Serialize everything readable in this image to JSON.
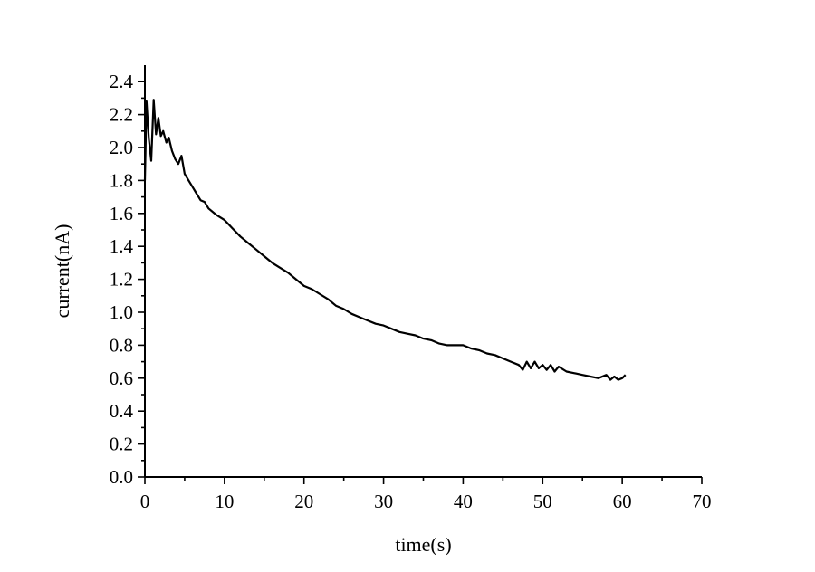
{
  "chart_data": {
    "type": "line",
    "title": "",
    "xlabel": "time(s)",
    "ylabel": "current(nA)",
    "xlim": [
      0,
      70
    ],
    "ylim": [
      0,
      2.5
    ],
    "x_ticks": [
      0,
      10,
      20,
      30,
      40,
      50,
      60,
      70
    ],
    "x_tick_labels": [
      "0",
      "10",
      "20",
      "30",
      "40",
      "50",
      "60",
      "70"
    ],
    "y_ticks": [
      0.0,
      0.2,
      0.4,
      0.6,
      0.8,
      1.0,
      1.2,
      1.4,
      1.6,
      1.8,
      2.0,
      2.2,
      2.4
    ],
    "y_tick_labels": [
      "0.0",
      "0.2",
      "0.4",
      "0.6",
      "0.8",
      "1.0",
      "1.2",
      "1.4",
      "1.6",
      "1.8",
      "2.0",
      "2.2",
      "2.4"
    ],
    "grid": false,
    "legend": "none",
    "series": [
      {
        "color": "#000000",
        "x": [
          0,
          0.2,
          0.5,
          0.8,
          1.1,
          1.4,
          1.7,
          2.0,
          2.3,
          2.7,
          3.0,
          3.4,
          3.8,
          4.2,
          4.6,
          5.0,
          5.5,
          6.0,
          6.5,
          7.0,
          7.5,
          8.0,
          9.0,
          10,
          11,
          12,
          13,
          14,
          15,
          16,
          17,
          18,
          19,
          20,
          21,
          22,
          23,
          24,
          25,
          26,
          27,
          28,
          29,
          30,
          31,
          32,
          33,
          34,
          35,
          36,
          37,
          38,
          39,
          40,
          41,
          42,
          43,
          44,
          45,
          46,
          47,
          47.5,
          48,
          48.5,
          49,
          49.5,
          50,
          50.5,
          51,
          51.5,
          52,
          53,
          54,
          55,
          56,
          57,
          58,
          58.5,
          59,
          59.5,
          60,
          60.4
        ],
        "y": [
          1.8,
          2.28,
          2.05,
          1.92,
          2.29,
          2.08,
          2.18,
          2.07,
          2.1,
          2.03,
          2.06,
          1.98,
          1.93,
          1.9,
          1.95,
          1.84,
          1.8,
          1.76,
          1.72,
          1.68,
          1.67,
          1.63,
          1.59,
          1.56,
          1.51,
          1.46,
          1.42,
          1.38,
          1.34,
          1.3,
          1.27,
          1.24,
          1.2,
          1.16,
          1.14,
          1.11,
          1.08,
          1.04,
          1.02,
          0.99,
          0.97,
          0.95,
          0.93,
          0.92,
          0.9,
          0.88,
          0.87,
          0.86,
          0.84,
          0.83,
          0.81,
          0.8,
          0.8,
          0.8,
          0.78,
          0.77,
          0.75,
          0.74,
          0.72,
          0.7,
          0.68,
          0.65,
          0.7,
          0.66,
          0.7,
          0.66,
          0.68,
          0.65,
          0.68,
          0.64,
          0.67,
          0.64,
          0.63,
          0.62,
          0.61,
          0.6,
          0.62,
          0.59,
          0.61,
          0.59,
          0.6,
          0.62
        ]
      }
    ]
  }
}
